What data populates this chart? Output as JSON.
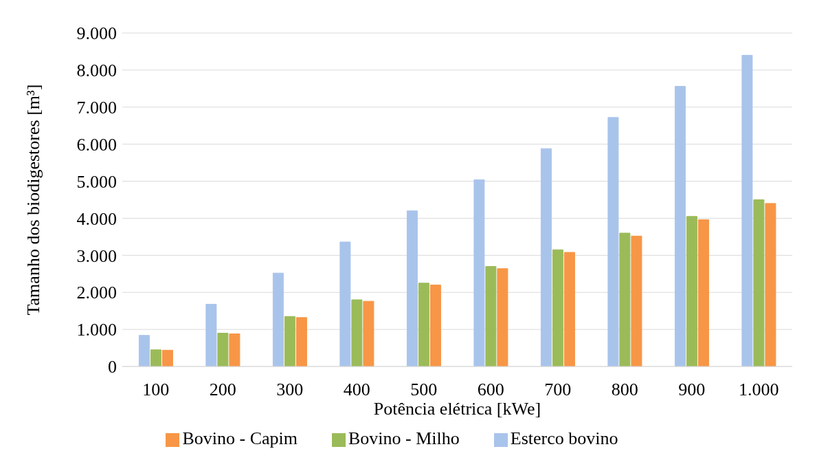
{
  "chart_data": {
    "type": "bar",
    "xlabel": "Potência elétrica [kWe]",
    "ylabel": "Tamanho dos biodigestores [m³]",
    "categories": [
      "100",
      "200",
      "300",
      "400",
      "500",
      "600",
      "700",
      "800",
      "900",
      "1.000"
    ],
    "series": [
      {
        "name": "Esterco bovino",
        "color": "#a9c4eb",
        "values": [
          840,
          1680,
          2520,
          3360,
          4200,
          5040,
          5880,
          6720,
          7560,
          8400
        ]
      },
      {
        "name": "Bovino - Milho",
        "color": "#9bbb59",
        "values": [
          450,
          900,
          1350,
          1800,
          2250,
          2700,
          3150,
          3600,
          4050,
          4500
        ]
      },
      {
        "name": "Bovino - Capim",
        "color": "#f79646",
        "values": [
          440,
          880,
          1320,
          1760,
          2200,
          2640,
          3080,
          3520,
          3960,
          4400
        ]
      }
    ],
    "ylim": [
      0,
      9000
    ],
    "yticks": [
      {
        "value": 0,
        "label": "0"
      },
      {
        "value": 1000,
        "label": "1.000"
      },
      {
        "value": 2000,
        "label": "2.000"
      },
      {
        "value": 3000,
        "label": "3.000"
      },
      {
        "value": 4000,
        "label": "4.000"
      },
      {
        "value": 5000,
        "label": "5.000"
      },
      {
        "value": 6000,
        "label": "6.000"
      },
      {
        "value": 7000,
        "label": "7.000"
      },
      {
        "value": 8000,
        "label": "8.000"
      },
      {
        "value": 9000,
        "label": "9.000"
      }
    ],
    "grid": "y",
    "legend": "bottom"
  }
}
